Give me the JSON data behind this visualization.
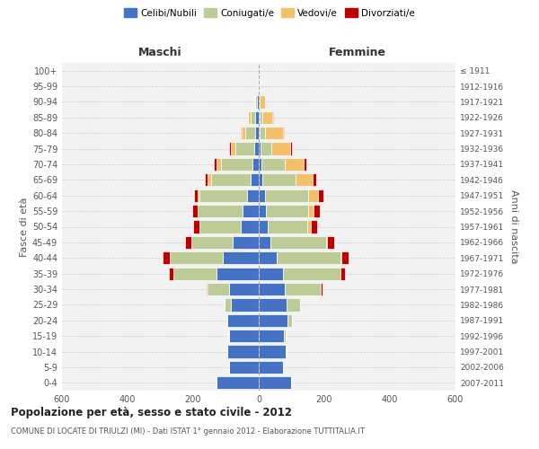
{
  "age_groups": [
    "100+",
    "95-99",
    "90-94",
    "85-89",
    "80-84",
    "75-79",
    "70-74",
    "65-69",
    "60-64",
    "55-59",
    "50-54",
    "45-49",
    "40-44",
    "35-39",
    "30-34",
    "25-29",
    "20-24",
    "15-19",
    "10-14",
    "5-9",
    "0-4"
  ],
  "birth_years": [
    "≤ 1911",
    "1912-1916",
    "1917-1921",
    "1922-1926",
    "1927-1931",
    "1932-1936",
    "1937-1941",
    "1942-1946",
    "1947-1951",
    "1952-1956",
    "1957-1961",
    "1962-1966",
    "1967-1971",
    "1972-1976",
    "1977-1981",
    "1982-1986",
    "1987-1991",
    "1992-1996",
    "1997-2001",
    "2002-2006",
    "2007-2011"
  ],
  "maschi": {
    "celibi": [
      0,
      1,
      5,
      10,
      10,
      15,
      20,
      25,
      35,
      50,
      55,
      80,
      110,
      130,
      90,
      85,
      95,
      90,
      95,
      90,
      130
    ],
    "coniugati": [
      0,
      1,
      5,
      15,
      30,
      55,
      95,
      120,
      145,
      135,
      125,
      125,
      160,
      130,
      65,
      18,
      5,
      2,
      0,
      0,
      0
    ],
    "vedovi": [
      0,
      0,
      2,
      8,
      12,
      15,
      15,
      10,
      5,
      2,
      1,
      0,
      0,
      0,
      0,
      0,
      0,
      0,
      0,
      0,
      0
    ],
    "divorziati": [
      0,
      0,
      0,
      1,
      2,
      5,
      8,
      10,
      12,
      15,
      18,
      20,
      22,
      15,
      5,
      2,
      0,
      0,
      0,
      0,
      0
    ]
  },
  "femmine": {
    "nubili": [
      0,
      1,
      2,
      3,
      4,
      5,
      8,
      12,
      18,
      22,
      28,
      35,
      55,
      75,
      80,
      85,
      88,
      78,
      82,
      73,
      98
    ],
    "coniugate": [
      0,
      0,
      2,
      8,
      15,
      32,
      72,
      100,
      132,
      128,
      120,
      170,
      195,
      175,
      110,
      40,
      12,
      3,
      2,
      0,
      0
    ],
    "vedove": [
      0,
      2,
      15,
      30,
      55,
      58,
      58,
      52,
      32,
      18,
      10,
      4,
      2,
      0,
      0,
      0,
      0,
      0,
      0,
      0,
      0
    ],
    "divorziate": [
      0,
      0,
      0,
      2,
      3,
      5,
      8,
      10,
      15,
      18,
      20,
      22,
      22,
      12,
      5,
      2,
      0,
      0,
      0,
      0,
      0
    ]
  },
  "colors": {
    "celibi": "#4472C4",
    "coniugati": "#BDCC96",
    "vedovi": "#F4C069",
    "divorziati": "#C00000"
  },
  "xlim": 600,
  "title": "Popolazione per età, sesso e stato civile - 2012",
  "subtitle": "COMUNE DI LOCATE DI TRIULZI (MI) - Dati ISTAT 1° gennaio 2012 - Elaborazione TUTTITALIA.IT",
  "ylabel_left": "Fasce di età",
  "ylabel_right": "Anni di nascita",
  "bg_color": "#f2f2f2",
  "bar_edge_color": "white",
  "bar_linewidth": 0.5
}
